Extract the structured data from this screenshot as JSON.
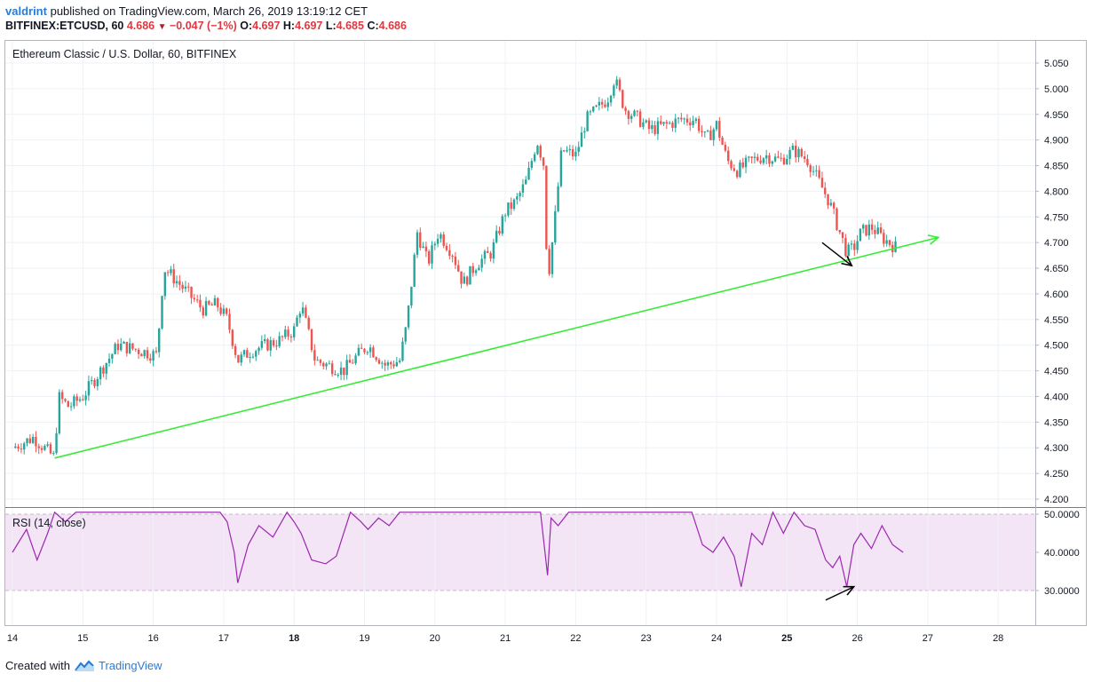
{
  "header": {
    "user": "valdrint",
    "published_text": "published on TradingView.com, March 26, 2019 13:19:12 CET",
    "symbol_line": {
      "symbol": "BITFINEX:ETCUSD, 60",
      "last": "4.686",
      "change": "−0.047 (−1%)",
      "o_label": "O:",
      "o": "4.697",
      "h_label": "H:",
      "h": "4.697",
      "l_label": "L:",
      "l": "4.685",
      "c_label": "C:",
      "c": "4.686"
    }
  },
  "chart_title": "Ethereum Classic / U.S. Dollar, 60, BITFINEX",
  "rsi_label": "RSI (14, close)",
  "footer": {
    "created_with": "Created with",
    "brand": "TradingView"
  },
  "colors": {
    "up": "#26a69a",
    "down": "#ef5350",
    "trendline": "#33ee33",
    "rsi_line": "#9c27b0",
    "rsi_band": "#f3e5f5",
    "grid": "#eef2f6"
  },
  "chart_data": [
    {
      "type": "candlestick",
      "title": "Ethereum Classic / U.S. Dollar, 60, BITFINEX",
      "x_ticks": [
        "14",
        "15",
        "16",
        "17",
        "18",
        "19",
        "20",
        "21",
        "22",
        "23",
        "24",
        "25",
        "26",
        "27",
        "28"
      ],
      "bold_ticks": [
        "18",
        "25"
      ],
      "y_ticks": [
        "4.200",
        "4.250",
        "4.300",
        "4.350",
        "4.400",
        "4.450",
        "4.500",
        "4.550",
        "4.600",
        "4.650",
        "4.700",
        "4.750",
        "4.800",
        "4.850",
        "4.900",
        "4.950",
        "5.000",
        "5.050"
      ],
      "ylim": [
        4.19,
        5.08
      ],
      "xlim": [
        14.0,
        28.5
      ],
      "close_path": [
        [
          14.0,
          4.3
        ],
        [
          14.3,
          4.32
        ],
        [
          14.6,
          4.28
        ],
        [
          14.65,
          4.4
        ],
        [
          14.8,
          4.38
        ],
        [
          15.0,
          4.4
        ],
        [
          15.2,
          4.44
        ],
        [
          15.5,
          4.5
        ],
        [
          15.8,
          4.49
        ],
        [
          16.05,
          4.48
        ],
        [
          16.15,
          4.65
        ],
        [
          16.3,
          4.63
        ],
        [
          16.5,
          4.6
        ],
        [
          16.7,
          4.57
        ],
        [
          16.9,
          4.58
        ],
        [
          17.05,
          4.55
        ],
        [
          17.2,
          4.47
        ],
        [
          17.4,
          4.49
        ],
        [
          17.6,
          4.5
        ],
        [
          17.8,
          4.51
        ],
        [
          18.0,
          4.53
        ],
        [
          18.1,
          4.58
        ],
        [
          18.3,
          4.47
        ],
        [
          18.5,
          4.46
        ],
        [
          18.7,
          4.45
        ],
        [
          18.9,
          4.48
        ],
        [
          19.05,
          4.5
        ],
        [
          19.3,
          4.46
        ],
        [
          19.5,
          4.47
        ],
        [
          19.6,
          4.54
        ],
        [
          19.75,
          4.72
        ],
        [
          19.9,
          4.66
        ],
        [
          20.05,
          4.72
        ],
        [
          20.25,
          4.68
        ],
        [
          20.4,
          4.62
        ],
        [
          20.6,
          4.66
        ],
        [
          20.8,
          4.68
        ],
        [
          21.0,
          4.76
        ],
        [
          21.15,
          4.78
        ],
        [
          21.3,
          4.82
        ],
        [
          21.45,
          4.9
        ],
        [
          21.55,
          4.85
        ],
        [
          21.6,
          4.62
        ],
        [
          21.7,
          4.74
        ],
        [
          21.8,
          4.88
        ],
        [
          22.0,
          4.87
        ],
        [
          22.15,
          4.94
        ],
        [
          22.3,
          4.96
        ],
        [
          22.45,
          4.98
        ],
        [
          22.55,
          5.02
        ],
        [
          22.7,
          4.96
        ],
        [
          22.9,
          4.94
        ],
        [
          23.05,
          4.92
        ],
        [
          23.3,
          4.93
        ],
        [
          23.5,
          4.94
        ],
        [
          23.7,
          4.94
        ],
        [
          23.85,
          4.9
        ],
        [
          24.0,
          4.93
        ],
        [
          24.15,
          4.86
        ],
        [
          24.3,
          4.84
        ],
        [
          24.5,
          4.86
        ],
        [
          24.7,
          4.87
        ],
        [
          24.9,
          4.86
        ],
        [
          25.1,
          4.88
        ],
        [
          25.3,
          4.86
        ],
        [
          25.45,
          4.82
        ],
        [
          25.6,
          4.78
        ],
        [
          25.75,
          4.72
        ],
        [
          25.85,
          4.68
        ],
        [
          25.95,
          4.69
        ],
        [
          26.05,
          4.72
        ],
        [
          26.2,
          4.73
        ],
        [
          26.35,
          4.71
        ],
        [
          26.55,
          4.69
        ]
      ],
      "trendline": {
        "from": [
          14.6,
          4.28
        ],
        "to": [
          27.15,
          4.71
        ]
      },
      "arrow": {
        "from": [
          25.5,
          4.7
        ],
        "to": [
          25.92,
          4.655
        ]
      }
    },
    {
      "type": "line",
      "title": "RSI (14, close)",
      "y_ticks": [
        "30.0000",
        "40.0000",
        "50.0000"
      ],
      "ylim": [
        26.0,
        50.5
      ],
      "band": [
        30,
        50
      ],
      "x": [
        14.0,
        14.2,
        14.35,
        14.5,
        14.6,
        14.75,
        14.9,
        15.0,
        15.2,
        15.4,
        15.6,
        15.8,
        16.0,
        16.1,
        16.2,
        16.4,
        16.6,
        16.8,
        16.95,
        17.05,
        17.15,
        17.2,
        17.35,
        17.5,
        17.7,
        17.9,
        18.0,
        18.1,
        18.25,
        18.45,
        18.6,
        18.8,
        18.95,
        19.05,
        19.2,
        19.35,
        19.5,
        19.6,
        19.75,
        19.9,
        20.05,
        20.2,
        20.35,
        20.5,
        20.65,
        20.8,
        21.0,
        21.2,
        21.35,
        21.5,
        21.6,
        21.65,
        21.75,
        21.9,
        22.1,
        22.3,
        22.5,
        22.7,
        22.9,
        23.1,
        23.3,
        23.5,
        23.65,
        23.8,
        23.95,
        24.1,
        24.25,
        24.35,
        24.5,
        24.65,
        24.8,
        24.95,
        25.1,
        25.25,
        25.4,
        25.55,
        25.65,
        25.75,
        25.85,
        25.95,
        26.05,
        26.2,
        26.35,
        26.5,
        26.65
      ],
      "values": [
        40,
        46,
        38,
        45,
        50.5,
        48,
        50.5,
        50.5,
        50.5,
        50.5,
        50.5,
        50.5,
        50.5,
        50.5,
        50.5,
        50.5,
        50.5,
        50.5,
        50.5,
        48,
        40,
        32,
        42,
        47,
        44,
        50.5,
        48,
        45,
        38,
        37,
        39,
        50.5,
        48,
        46,
        49,
        47,
        50.5,
        50.5,
        50.5,
        50.5,
        50.5,
        50.5,
        50.5,
        50.5,
        50.5,
        50.5,
        50.5,
        50.5,
        50.5,
        50.5,
        34,
        49,
        47,
        50.5,
        50.5,
        50.5,
        50.5,
        50.5,
        50.5,
        50.5,
        50.5,
        50.5,
        50.5,
        42,
        40,
        44,
        39,
        31,
        45,
        42,
        50.5,
        45,
        50.5,
        47,
        46,
        38,
        36,
        39,
        31,
        42,
        45,
        41,
        47,
        42,
        40
      ]
    }
  ]
}
